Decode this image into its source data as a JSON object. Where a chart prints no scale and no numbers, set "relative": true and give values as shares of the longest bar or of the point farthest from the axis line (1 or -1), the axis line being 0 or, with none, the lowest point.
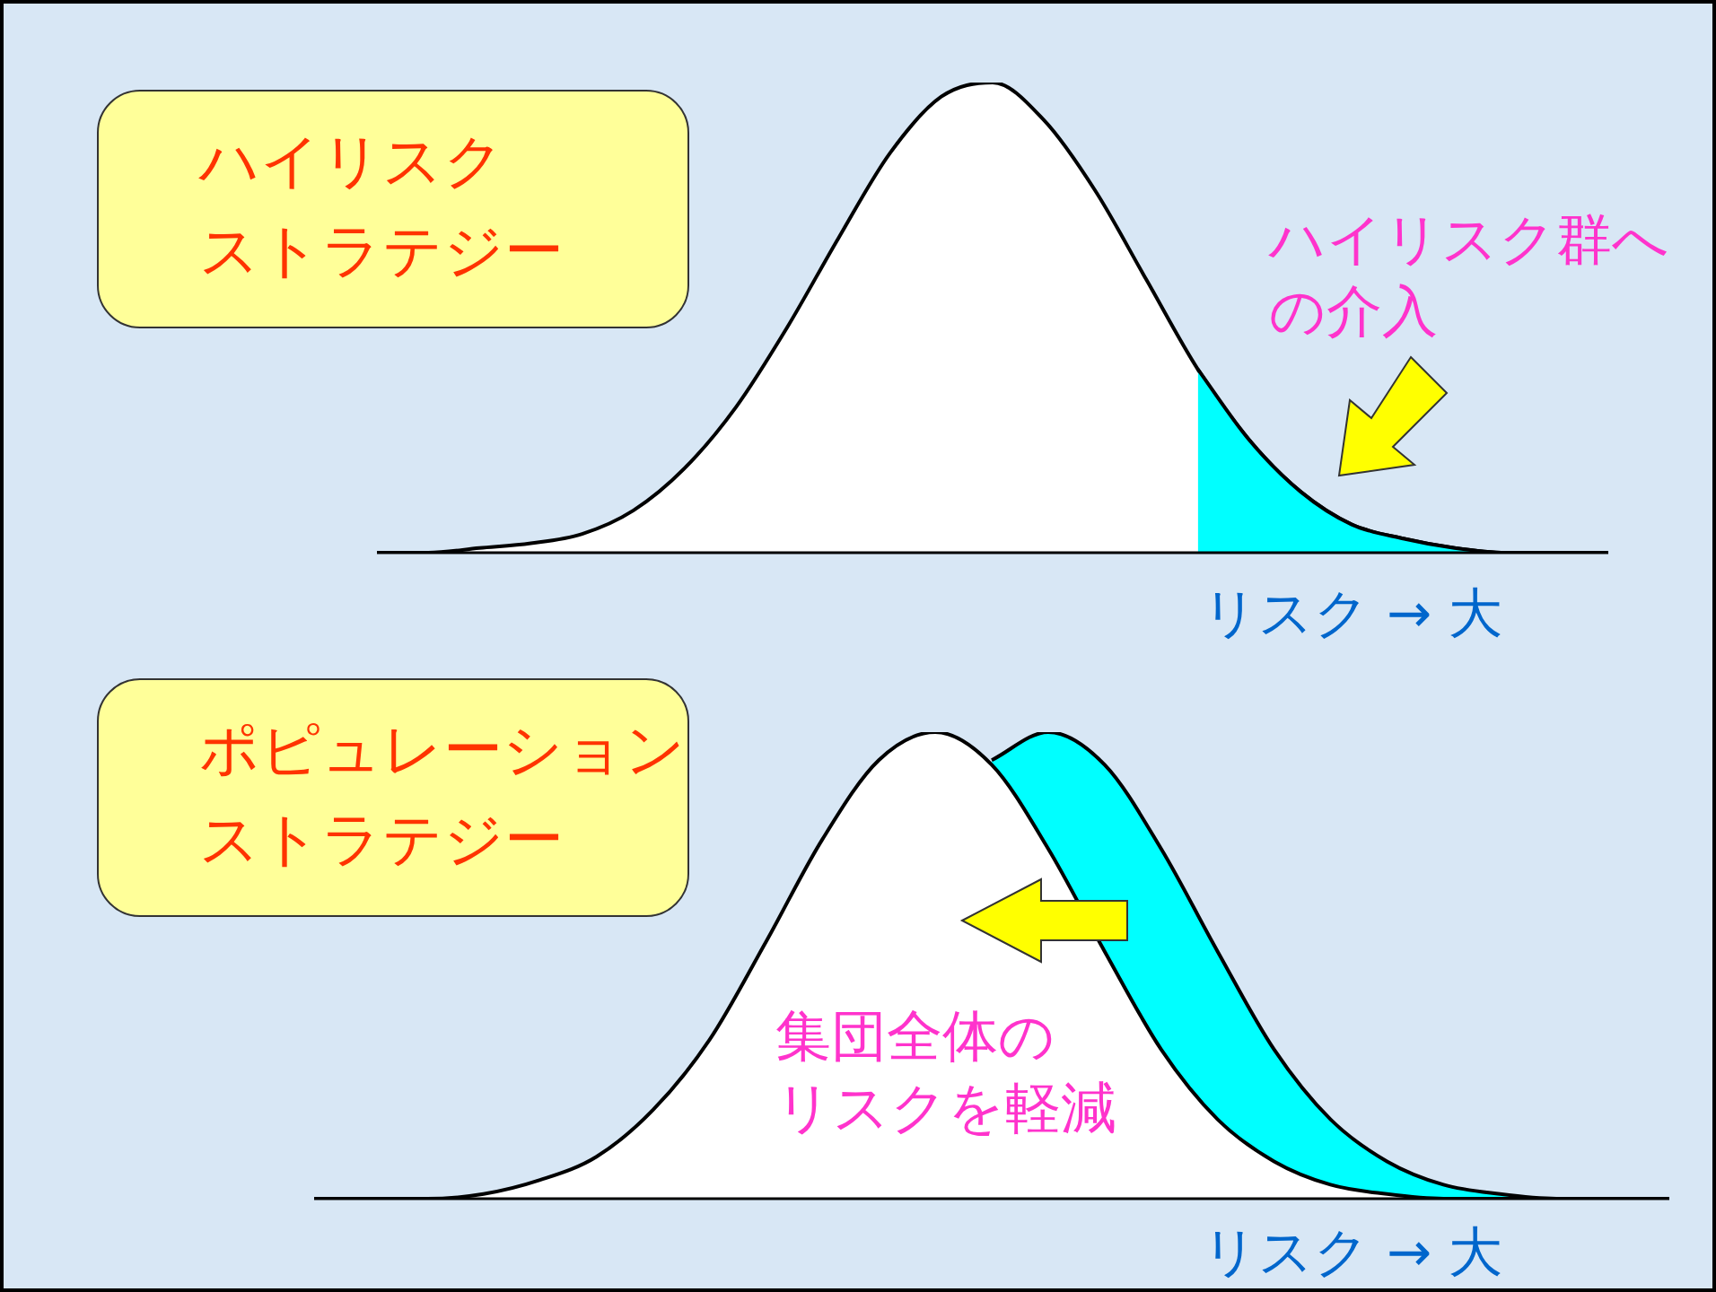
{
  "chart_data": [
    {
      "type": "area",
      "title": "ハイリスクストラテジー",
      "xlabel": "リスク → 大",
      "relative": true,
      "annotations": [
        "ハイリスク群への介入"
      ],
      "categories": [
        null,
        null,
        null,
        null,
        null,
        null,
        null,
        null,
        null,
        null,
        null,
        null,
        null,
        null,
        null,
        null,
        null,
        null,
        null,
        null,
        null,
        null,
        null,
        null,
        null
      ],
      "series": [
        {
          "color": "#00ffff",
          "values": [
            null,
            null,
            null,
            null,
            null,
            null,
            null,
            null,
            null,
            null,
            null,
            null,
            null,
            null,
            null,
            null,
            0.39,
            0.24,
            0.13,
            0.06,
            0.03,
            0.01,
            0,
            0,
            0
          ]
        },
        {
          "color": "#ffffff",
          "values": [
            0,
            0,
            0.01,
            0.02,
            0.04,
            0.09,
            0.18,
            0.31,
            0.48,
            0.67,
            0.85,
            0.97,
            1,
            0.92,
            0.77,
            0.58,
            0.39,
            0.24,
            0.13,
            0.06,
            0.03,
            0.01,
            0,
            0,
            0
          ]
        }
      ]
    },
    {
      "type": "area",
      "title": "ポピュレーションストラテジー",
      "xlabel": "リスク → 大",
      "relative": true,
      "annotations": [
        "集団全体のリスクを軽減"
      ],
      "categories": [
        null,
        null,
        null,
        null,
        null,
        null,
        null,
        null,
        null,
        null,
        null,
        null,
        null,
        null,
        null,
        null,
        null,
        null,
        null,
        null,
        null,
        null,
        null,
        null,
        null
      ],
      "series": [
        {
          "color": "#ffffff",
          "values": [
            0,
            0,
            0,
            0.01,
            0.04,
            0.09,
            0.19,
            0.34,
            0.55,
            0.77,
            0.94,
            1,
            0.93,
            0.75,
            0.53,
            0.32,
            0.17,
            0.08,
            0.03,
            0.01,
            0,
            0,
            0,
            0,
            0
          ]
        },
        {
          "color": "#00ffff",
          "values": [
            null,
            null,
            null,
            null,
            null,
            null,
            null,
            null,
            null,
            null,
            null,
            null,
            0.94,
            1,
            0.93,
            0.75,
            0.53,
            0.32,
            0.17,
            0.08,
            0.03,
            0.01,
            0,
            0,
            0
          ]
        }
      ]
    }
  ]
}
